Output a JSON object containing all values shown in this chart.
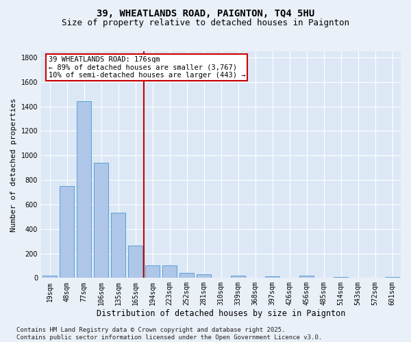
{
  "title": "39, WHEATLANDS ROAD, PAIGNTON, TQ4 5HU",
  "subtitle": "Size of property relative to detached houses in Paignton",
  "xlabel": "Distribution of detached houses by size in Paignton",
  "ylabel": "Number of detached properties",
  "categories": [
    "19sqm",
    "48sqm",
    "77sqm",
    "106sqm",
    "135sqm",
    "165sqm",
    "194sqm",
    "223sqm",
    "252sqm",
    "281sqm",
    "310sqm",
    "339sqm",
    "368sqm",
    "397sqm",
    "426sqm",
    "456sqm",
    "485sqm",
    "514sqm",
    "543sqm",
    "572sqm",
    "601sqm"
  ],
  "values": [
    20,
    750,
    1440,
    940,
    535,
    265,
    105,
    100,
    40,
    30,
    0,
    20,
    0,
    15,
    0,
    20,
    0,
    10,
    0,
    0,
    10
  ],
  "bar_color": "#aec6e8",
  "bar_edge_color": "#5a9fd4",
  "vline_color": "#cc0000",
  "annotation_line1": "39 WHEATLANDS ROAD: 176sqm",
  "annotation_line2": "← 89% of detached houses are smaller (3,767)",
  "annotation_line3": "10% of semi-detached houses are larger (443) →",
  "annotation_box_color": "#cc0000",
  "ylim": [
    0,
    1850
  ],
  "yticks": [
    0,
    200,
    400,
    600,
    800,
    1000,
    1200,
    1400,
    1600,
    1800
  ],
  "footer": "Contains HM Land Registry data © Crown copyright and database right 2025.\nContains public sector information licensed under the Open Government Licence v3.0.",
  "bg_color": "#dce8f5",
  "grid_color": "#ffffff",
  "fig_bg_color": "#eaf0f8",
  "title_fontsize": 10,
  "subtitle_fontsize": 9,
  "tick_fontsize": 7,
  "ylabel_fontsize": 8,
  "xlabel_fontsize": 8.5,
  "annotation_fontsize": 7.5,
  "footer_fontsize": 6.5
}
